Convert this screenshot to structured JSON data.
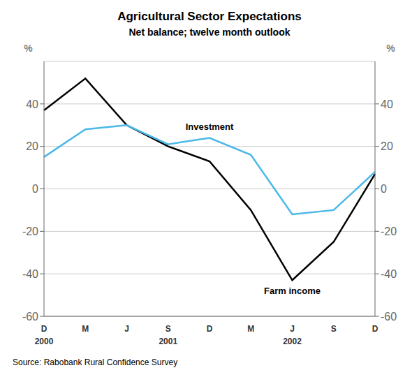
{
  "chart_data": {
    "type": "line",
    "title": "Agricultural Sector Expectations",
    "subtitle": "Net balance; twelve month outlook",
    "source": "Source: Rabobank Rural Confidence Survey",
    "categories": [
      "D",
      "M",
      "J",
      "S",
      "D",
      "M",
      "J",
      "S",
      "D"
    ],
    "x_group_labels": [
      {
        "text": "2000",
        "index": 0
      },
      {
        "text": "2001",
        "index": 3
      },
      {
        "text": "2002",
        "index": 6
      }
    ],
    "series": [
      {
        "name": "Farm income",
        "color": "#000000",
        "values": [
          37,
          52,
          30,
          20,
          13,
          -10,
          -43,
          -25,
          7
        ]
      },
      {
        "name": "Investment",
        "color": "#4ab8e8",
        "values": [
          15,
          28,
          30,
          21,
          24,
          16,
          -12,
          -10,
          8
        ]
      }
    ],
    "ylabel": "%",
    "y2label": "%",
    "ylim": [
      -60,
      60
    ],
    "yticks": [
      -60,
      -40,
      -20,
      0,
      20,
      40
    ],
    "y2lim": [
      -60,
      60
    ],
    "y2ticks": [
      -60,
      -40,
      -20,
      0,
      20,
      40
    ],
    "grid": true
  }
}
